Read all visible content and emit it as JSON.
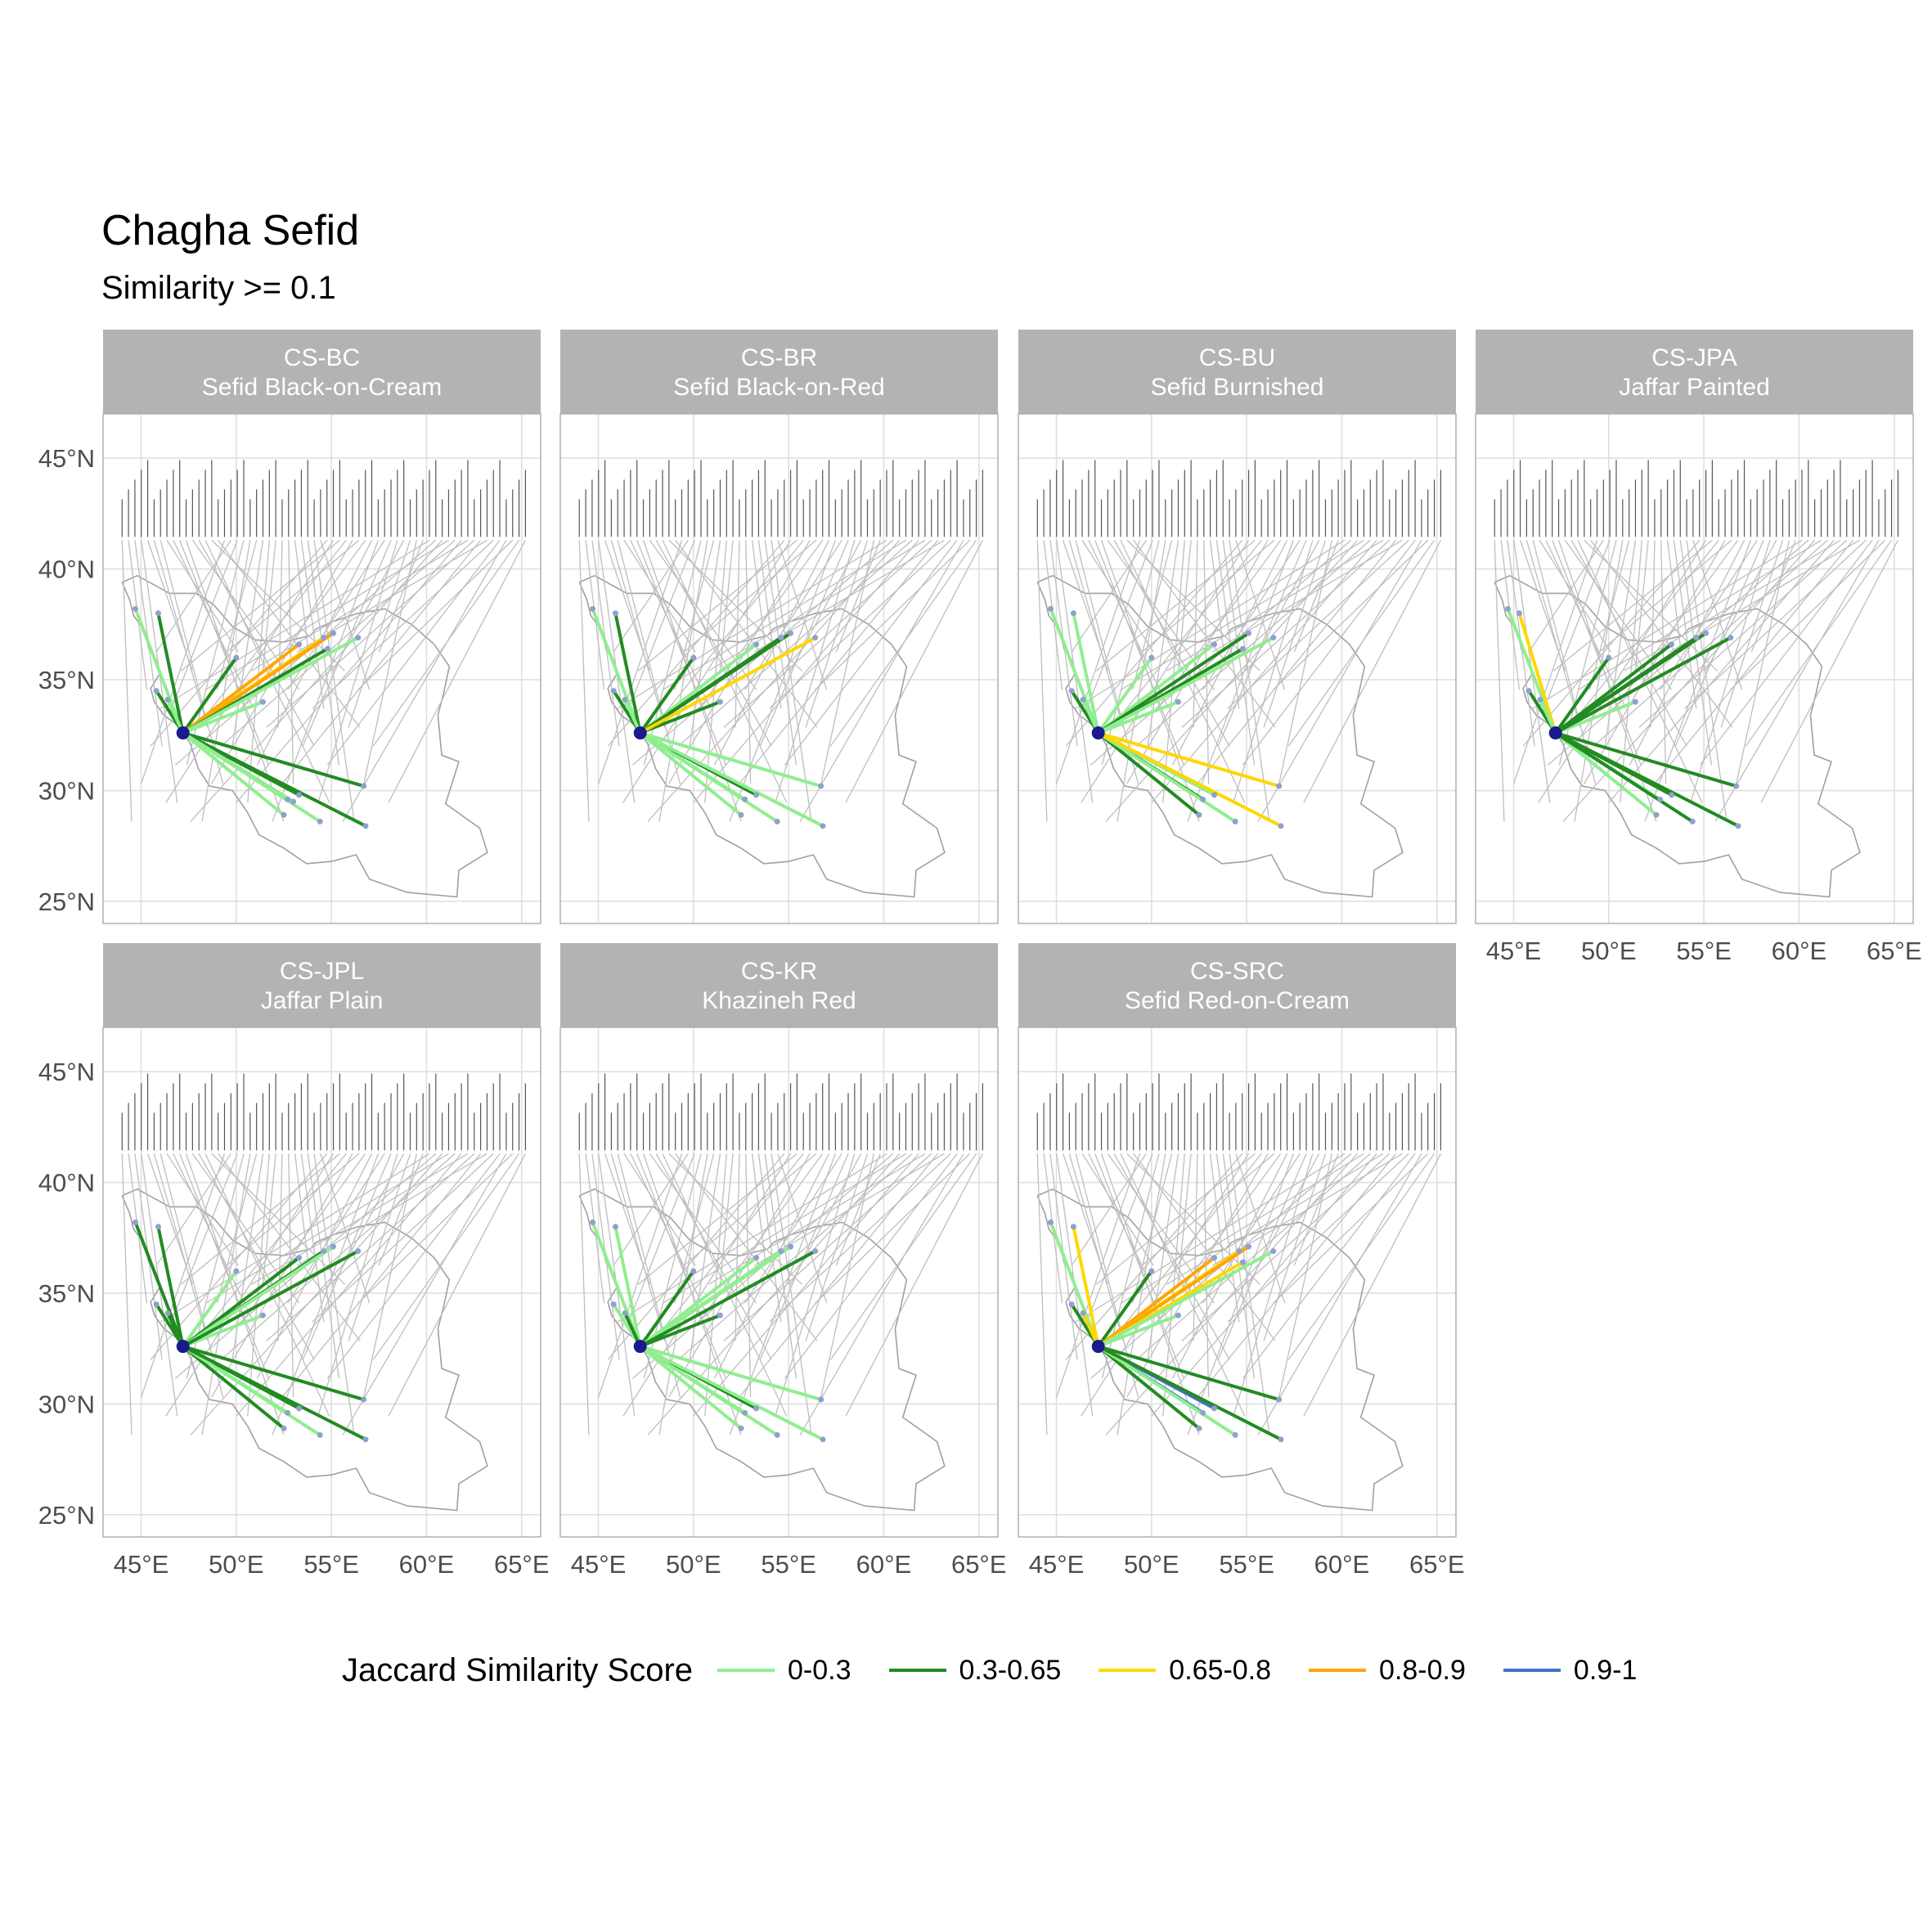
{
  "title": "Chagha Sefid",
  "subtitle": "Similarity >= 0.1",
  "legend": {
    "title": "Jaccard Similarity Score",
    "items": [
      {
        "label": "0-0.3",
        "color": "#90EE90"
      },
      {
        "label": "0.3-0.65",
        "color": "#228B22"
      },
      {
        "label": "0.65-0.8",
        "color": "#FFD700"
      },
      {
        "label": "0.8-0.9",
        "color": "#FFA500"
      },
      {
        "label": "0.9-1",
        "color": "#4472C4"
      }
    ]
  },
  "colors": {
    "strip_bg": "#B3B3B3",
    "strip_text": "#FFFFFF",
    "grid": "#DEDEDE",
    "connector": "#BEBEBE",
    "border": "#A0A0A0",
    "origin_point": "#1A1A8C",
    "site_point": "#8FA0CF"
  },
  "chart_data": {
    "type": "map",
    "grid": true,
    "legend_position": "bottom",
    "x_ticks": [
      "45°E",
      "50°E",
      "55°E",
      "60°E",
      "65°E"
    ],
    "y_ticks": [
      "25°N",
      "30°N",
      "35°N",
      "40°N",
      "45°N"
    ],
    "xlim": [
      43,
      66
    ],
    "ylim": [
      24,
      47
    ],
    "origin": {
      "name": "Chagha Sefid",
      "lon": 47.2,
      "lat": 32.6
    },
    "panels": [
      {
        "code": "CS-BC",
        "name": "Sefid Black-on-Cream",
        "links": [
          {
            "lon": 44.7,
            "lat": 38.2,
            "cat": 0
          },
          {
            "lon": 45.9,
            "lat": 38.0,
            "cat": 1
          },
          {
            "lon": 45.8,
            "lat": 34.5,
            "cat": 1
          },
          {
            "lon": 46.4,
            "lat": 34.1,
            "cat": 0
          },
          {
            "lon": 50.0,
            "lat": 36.0,
            "cat": 1
          },
          {
            "lon": 51.4,
            "lat": 34.0,
            "cat": 0
          },
          {
            "lon": 53.3,
            "lat": 36.6,
            "cat": 3
          },
          {
            "lon": 54.6,
            "lat": 36.9,
            "cat": 2
          },
          {
            "lon": 55.1,
            "lat": 37.1,
            "cat": 3
          },
          {
            "lon": 54.8,
            "lat": 36.4,
            "cat": 1
          },
          {
            "lon": 56.4,
            "lat": 36.9,
            "cat": 0
          },
          {
            "lon": 52.7,
            "lat": 29.6,
            "cat": 3
          },
          {
            "lon": 53.3,
            "lat": 29.8,
            "cat": 1
          },
          {
            "lon": 52.5,
            "lat": 28.9,
            "cat": 0
          },
          {
            "lon": 54.4,
            "lat": 28.6,
            "cat": 0
          },
          {
            "lon": 56.7,
            "lat": 30.2,
            "cat": 1
          },
          {
            "lon": 56.8,
            "lat": 28.4,
            "cat": 1
          },
          {
            "lon": 53.0,
            "lat": 29.5,
            "cat": 0
          }
        ]
      },
      {
        "code": "CS-BR",
        "name": "Sefid Black-on-Red",
        "links": [
          {
            "lon": 44.7,
            "lat": 38.2,
            "cat": 0
          },
          {
            "lon": 45.9,
            "lat": 38.0,
            "cat": 1
          },
          {
            "lon": 45.8,
            "lat": 34.5,
            "cat": 1
          },
          {
            "lon": 46.4,
            "lat": 34.1,
            "cat": 0
          },
          {
            "lon": 50.0,
            "lat": 36.0,
            "cat": 1
          },
          {
            "lon": 51.4,
            "lat": 34.0,
            "cat": 1
          },
          {
            "lon": 53.3,
            "lat": 36.6,
            "cat": 0
          },
          {
            "lon": 54.6,
            "lat": 36.9,
            "cat": 1
          },
          {
            "lon": 55.1,
            "lat": 37.1,
            "cat": 1
          },
          {
            "lon": 56.4,
            "lat": 36.9,
            "cat": 2
          },
          {
            "lon": 52.7,
            "lat": 29.6,
            "cat": 0
          },
          {
            "lon": 53.3,
            "lat": 29.8,
            "cat": 1
          },
          {
            "lon": 52.5,
            "lat": 28.9,
            "cat": 0
          },
          {
            "lon": 54.4,
            "lat": 28.6,
            "cat": 0
          },
          {
            "lon": 56.7,
            "lat": 30.2,
            "cat": 0
          },
          {
            "lon": 56.8,
            "lat": 28.4,
            "cat": 0
          }
        ]
      },
      {
        "code": "CS-BU",
        "name": "Sefid Burnished",
        "links": [
          {
            "lon": 44.7,
            "lat": 38.2,
            "cat": 0
          },
          {
            "lon": 45.9,
            "lat": 38.0,
            "cat": 0
          },
          {
            "lon": 45.8,
            "lat": 34.5,
            "cat": 1
          },
          {
            "lon": 46.4,
            "lat": 34.1,
            "cat": 0
          },
          {
            "lon": 50.0,
            "lat": 36.0,
            "cat": 0
          },
          {
            "lon": 51.4,
            "lat": 34.0,
            "cat": 0
          },
          {
            "lon": 53.3,
            "lat": 36.6,
            "cat": 0
          },
          {
            "lon": 55.1,
            "lat": 37.1,
            "cat": 1
          },
          {
            "lon": 54.8,
            "lat": 36.4,
            "cat": 1
          },
          {
            "lon": 56.4,
            "lat": 36.9,
            "cat": 0
          },
          {
            "lon": 52.7,
            "lat": 29.6,
            "cat": 1
          },
          {
            "lon": 53.3,
            "lat": 29.8,
            "cat": 0
          },
          {
            "lon": 52.5,
            "lat": 28.9,
            "cat": 1
          },
          {
            "lon": 54.4,
            "lat": 28.6,
            "cat": 0
          },
          {
            "lon": 56.7,
            "lat": 30.2,
            "cat": 2
          },
          {
            "lon": 56.8,
            "lat": 28.4,
            "cat": 2
          }
        ]
      },
      {
        "code": "CS-JPA",
        "name": "Jaffar Painted",
        "links": [
          {
            "lon": 44.7,
            "lat": 38.2,
            "cat": 0
          },
          {
            "lon": 45.3,
            "lat": 38.0,
            "cat": 2
          },
          {
            "lon": 45.8,
            "lat": 34.5,
            "cat": 1
          },
          {
            "lon": 46.4,
            "lat": 34.1,
            "cat": 0
          },
          {
            "lon": 50.0,
            "lat": 36.0,
            "cat": 1
          },
          {
            "lon": 51.4,
            "lat": 34.0,
            "cat": 0
          },
          {
            "lon": 53.3,
            "lat": 36.6,
            "cat": 1
          },
          {
            "lon": 54.6,
            "lat": 36.9,
            "cat": 1
          },
          {
            "lon": 55.1,
            "lat": 37.1,
            "cat": 1
          },
          {
            "lon": 56.4,
            "lat": 36.9,
            "cat": 1
          },
          {
            "lon": 52.7,
            "lat": 29.6,
            "cat": 0
          },
          {
            "lon": 53.3,
            "lat": 29.8,
            "cat": 1
          },
          {
            "lon": 52.5,
            "lat": 28.9,
            "cat": 0
          },
          {
            "lon": 54.4,
            "lat": 28.6,
            "cat": 1
          },
          {
            "lon": 56.7,
            "lat": 30.2,
            "cat": 1
          },
          {
            "lon": 56.8,
            "lat": 28.4,
            "cat": 1
          }
        ]
      },
      {
        "code": "CS-JPL",
        "name": "Jaffar Plain",
        "links": [
          {
            "lon": 44.7,
            "lat": 38.2,
            "cat": 1
          },
          {
            "lon": 45.9,
            "lat": 38.0,
            "cat": 1
          },
          {
            "lon": 45.8,
            "lat": 34.5,
            "cat": 1
          },
          {
            "lon": 46.4,
            "lat": 34.1,
            "cat": 1
          },
          {
            "lon": 50.0,
            "lat": 36.0,
            "cat": 0
          },
          {
            "lon": 51.4,
            "lat": 34.0,
            "cat": 0
          },
          {
            "lon": 53.3,
            "lat": 36.6,
            "cat": 1
          },
          {
            "lon": 54.6,
            "lat": 36.9,
            "cat": 1
          },
          {
            "lon": 55.1,
            "lat": 37.1,
            "cat": 0
          },
          {
            "lon": 56.4,
            "lat": 36.9,
            "cat": 1
          },
          {
            "lon": 52.7,
            "lat": 29.6,
            "cat": 0
          },
          {
            "lon": 53.3,
            "lat": 29.8,
            "cat": 1
          },
          {
            "lon": 52.5,
            "lat": 28.9,
            "cat": 1
          },
          {
            "lon": 54.4,
            "lat": 28.6,
            "cat": 0
          },
          {
            "lon": 56.7,
            "lat": 30.2,
            "cat": 1
          },
          {
            "lon": 56.8,
            "lat": 28.4,
            "cat": 1
          }
        ]
      },
      {
        "code": "CS-KR",
        "name": "Khazineh Red",
        "links": [
          {
            "lon": 44.7,
            "lat": 38.2,
            "cat": 0
          },
          {
            "lon": 45.9,
            "lat": 38.0,
            "cat": 0
          },
          {
            "lon": 45.8,
            "lat": 34.5,
            "cat": 0
          },
          {
            "lon": 46.4,
            "lat": 34.1,
            "cat": 1
          },
          {
            "lon": 50.0,
            "lat": 36.0,
            "cat": 1
          },
          {
            "lon": 51.4,
            "lat": 34.0,
            "cat": 1
          },
          {
            "lon": 53.3,
            "lat": 36.6,
            "cat": 0
          },
          {
            "lon": 54.6,
            "lat": 36.9,
            "cat": 0
          },
          {
            "lon": 55.1,
            "lat": 37.1,
            "cat": 0
          },
          {
            "lon": 56.4,
            "lat": 36.9,
            "cat": 1
          },
          {
            "lon": 52.7,
            "lat": 29.6,
            "cat": 0
          },
          {
            "lon": 53.3,
            "lat": 29.8,
            "cat": 1
          },
          {
            "lon": 52.5,
            "lat": 28.9,
            "cat": 0
          },
          {
            "lon": 54.4,
            "lat": 28.6,
            "cat": 0
          },
          {
            "lon": 56.7,
            "lat": 30.2,
            "cat": 0
          },
          {
            "lon": 56.8,
            "lat": 28.4,
            "cat": 0
          }
        ]
      },
      {
        "code": "CS-SRC",
        "name": "Sefid Red-on-Cream",
        "links": [
          {
            "lon": 44.7,
            "lat": 38.2,
            "cat": 0
          },
          {
            "lon": 45.9,
            "lat": 38.0,
            "cat": 2
          },
          {
            "lon": 45.8,
            "lat": 34.5,
            "cat": 1
          },
          {
            "lon": 46.4,
            "lat": 34.1,
            "cat": 2
          },
          {
            "lon": 50.0,
            "lat": 36.0,
            "cat": 1
          },
          {
            "lon": 51.4,
            "lat": 34.0,
            "cat": 0
          },
          {
            "lon": 53.3,
            "lat": 36.6,
            "cat": 3
          },
          {
            "lon": 54.6,
            "lat": 36.9,
            "cat": 2
          },
          {
            "lon": 55.1,
            "lat": 37.1,
            "cat": 3
          },
          {
            "lon": 54.8,
            "lat": 36.4,
            "cat": 2
          },
          {
            "lon": 56.4,
            "lat": 36.9,
            "cat": 0
          },
          {
            "lon": 52.7,
            "lat": 29.6,
            "cat": 4
          },
          {
            "lon": 53.3,
            "lat": 29.8,
            "cat": 4
          },
          {
            "lon": 52.5,
            "lat": 28.9,
            "cat": 1
          },
          {
            "lon": 54.4,
            "lat": 28.6,
            "cat": 0
          },
          {
            "lon": 56.7,
            "lat": 30.2,
            "cat": 1
          },
          {
            "lon": 56.8,
            "lat": 28.4,
            "cat": 1
          }
        ]
      }
    ]
  }
}
